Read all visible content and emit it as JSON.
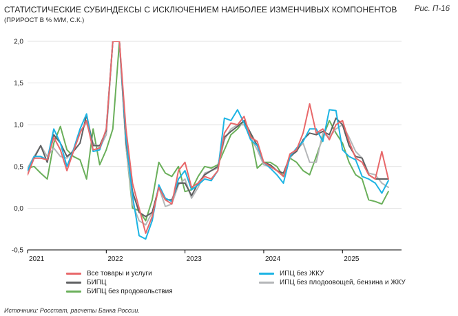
{
  "header": {
    "title": "СТАТИСТИЧЕСКИЕ СУБИНДЕКСЫ С ИСКЛЮЧЕНИЕМ НАИБОЛЕЕ ИЗМЕНЧИВЫХ КОМПОНЕНТОВ",
    "subtitle": "(ПРИРОСТ В % М/М, С.К.)",
    "figure_ref": "Рис. П-16"
  },
  "footer": {
    "source": "Источники: Росстат, расчеты Банка России."
  },
  "colors": {
    "all_goods": "#e8686a",
    "bipc": "#5f6062",
    "bipc_no_food": "#6aaf5a",
    "cpi_no_housing": "#1cb4e4",
    "cpi_no_veg": "#b4b6b8",
    "grid": "#d9d9d9",
    "axis": "#000000"
  },
  "chart_data": {
    "type": "line",
    "ylim": [
      -0.5,
      2.0
    ],
    "yticks": [
      "-0,5",
      "0,0",
      "0,5",
      "1,0",
      "1,5",
      "2,0"
    ],
    "ytick_values": [
      -0.5,
      0.0,
      0.5,
      1.0,
      1.5,
      2.0
    ],
    "xlim": [
      2021.0,
      2025.75
    ],
    "xticks": [
      "2021",
      "2022",
      "2023",
      "2024",
      "2025"
    ],
    "xtick_values": [
      2021,
      2022,
      2023,
      2024,
      2025
    ],
    "grid": "horizontal",
    "legend_position": "bottom",
    "series": [
      {
        "key": "all_goods",
        "name": "Все товары и услуги",
        "x": [
          2021.0,
          2021.083,
          2021.167,
          2021.25,
          2021.333,
          2021.417,
          2021.5,
          2021.583,
          2021.667,
          2021.75,
          2021.833,
          2021.917,
          2022.0,
          2022.083,
          2022.167,
          2022.25,
          2022.333,
          2022.417,
          2022.5,
          2022.583,
          2022.667,
          2022.75,
          2022.833,
          2022.917,
          2023.0,
          2023.083,
          2023.167,
          2023.25,
          2023.333,
          2023.417,
          2023.5,
          2023.583,
          2023.667,
          2023.75,
          2023.833,
          2023.917,
          2024.0,
          2024.083,
          2024.167,
          2024.25,
          2024.333,
          2024.417,
          2024.5,
          2024.583,
          2024.667,
          2024.75,
          2024.833,
          2024.917,
          2025.0,
          2025.083,
          2025.167,
          2025.25,
          2025.333,
          2025.417,
          2025.5,
          2025.583
        ],
        "y": [
          0.4,
          0.6,
          0.6,
          0.58,
          0.85,
          0.7,
          0.45,
          0.68,
          0.9,
          1.05,
          0.7,
          0.72,
          0.95,
          2.0,
          2.0,
          0.95,
          0.3,
          0.0,
          -0.3,
          -0.1,
          0.25,
          0.1,
          0.05,
          0.45,
          0.55,
          0.25,
          0.3,
          0.38,
          0.35,
          0.45,
          0.9,
          1.02,
          1.0,
          1.1,
          0.85,
          0.8,
          0.55,
          0.5,
          0.45,
          0.38,
          0.65,
          0.7,
          0.9,
          1.25,
          0.9,
          0.95,
          0.82,
          1.0,
          1.05,
          0.8,
          0.6,
          0.55,
          0.4,
          0.35,
          0.68,
          0.35
        ]
      },
      {
        "key": "bipc",
        "name": "БИПЦ",
        "x": [
          2021.0,
          2021.083,
          2021.167,
          2021.25,
          2021.333,
          2021.417,
          2021.5,
          2021.583,
          2021.667,
          2021.75,
          2021.833,
          2021.917,
          2022.0,
          2022.083,
          2022.167,
          2022.25,
          2022.333,
          2022.417,
          2022.5,
          2022.583,
          2022.667,
          2022.75,
          2022.833,
          2022.917,
          2023.0,
          2023.083,
          2023.167,
          2023.25,
          2023.333,
          2023.417,
          2023.5,
          2023.583,
          2023.667,
          2023.75,
          2023.833,
          2023.917,
          2024.0,
          2024.083,
          2024.167,
          2024.25,
          2024.333,
          2024.417,
          2024.5,
          2024.583,
          2024.667,
          2024.75,
          2024.833,
          2024.917,
          2025.0,
          2025.083,
          2025.167,
          2025.25,
          2025.333,
          2025.417,
          2025.5,
          2025.583
        ],
        "y": [
          0.45,
          0.6,
          0.75,
          0.55,
          0.88,
          0.78,
          0.62,
          0.68,
          0.78,
          1.12,
          0.75,
          0.75,
          0.93,
          2.0,
          2.0,
          0.8,
          0.2,
          -0.05,
          -0.1,
          -0.05,
          0.25,
          0.1,
          0.1,
          0.3,
          0.3,
          0.15,
          0.3,
          0.4,
          0.45,
          0.5,
          0.85,
          0.92,
          0.98,
          1.05,
          0.9,
          0.75,
          0.55,
          0.52,
          0.45,
          0.42,
          0.62,
          0.68,
          0.82,
          0.9,
          0.88,
          0.92,
          0.88,
          1.08,
          1.0,
          0.75,
          0.62,
          0.6,
          0.4,
          0.35,
          0.35,
          0.35
        ]
      },
      {
        "key": "bipc_no_food",
        "name": "БИПЦ без продовольствия",
        "x": [
          2021.0,
          2021.083,
          2021.167,
          2021.25,
          2021.333,
          2021.417,
          2021.5,
          2021.583,
          2021.667,
          2021.75,
          2021.833,
          2021.917,
          2022.0,
          2022.083,
          2022.167,
          2022.25,
          2022.333,
          2022.417,
          2022.5,
          2022.583,
          2022.667,
          2022.75,
          2022.833,
          2022.917,
          2023.0,
          2023.083,
          2023.167,
          2023.25,
          2023.333,
          2023.417,
          2023.5,
          2023.583,
          2023.667,
          2023.75,
          2023.833,
          2023.917,
          2024.0,
          2024.083,
          2024.167,
          2024.25,
          2024.333,
          2024.417,
          2024.5,
          2024.583,
          2024.667,
          2024.75,
          2024.833,
          2024.917,
          2025.0,
          2025.083,
          2025.167,
          2025.25,
          2025.333,
          2025.417,
          2025.5,
          2025.583
        ],
        "y": [
          0.48,
          0.5,
          0.42,
          0.35,
          0.78,
          0.98,
          0.7,
          0.62,
          0.58,
          0.35,
          0.95,
          0.52,
          0.7,
          0.95,
          2.0,
          0.75,
          0.0,
          -0.03,
          -0.15,
          0.1,
          0.55,
          0.42,
          0.38,
          0.5,
          0.2,
          0.22,
          0.38,
          0.5,
          0.48,
          0.52,
          0.7,
          0.88,
          0.95,
          1.05,
          0.88,
          0.48,
          0.55,
          0.55,
          0.5,
          0.38,
          0.6,
          0.55,
          0.45,
          0.4,
          0.62,
          0.85,
          1.05,
          0.9,
          0.78,
          0.55,
          0.4,
          0.35,
          0.1,
          0.08,
          0.05,
          0.2
        ]
      },
      {
        "key": "cpi_no_housing",
        "name": "ИПЦ без ЖКУ",
        "x": [
          2021.0,
          2021.083,
          2021.167,
          2021.25,
          2021.333,
          2021.417,
          2021.5,
          2021.583,
          2021.667,
          2021.75,
          2021.833,
          2021.917,
          2022.0,
          2022.083,
          2022.167,
          2022.25,
          2022.333,
          2022.417,
          2022.5,
          2022.583,
          2022.667,
          2022.75,
          2022.833,
          2022.917,
          2023.0,
          2023.083,
          2023.167,
          2023.25,
          2023.333,
          2023.417,
          2023.5,
          2023.583,
          2023.667,
          2023.75,
          2023.833,
          2023.917,
          2024.0,
          2024.083,
          2024.167,
          2024.25,
          2024.333,
          2024.417,
          2024.5,
          2024.583,
          2024.667,
          2024.75,
          2024.833,
          2024.917,
          2025.0,
          2025.083,
          2025.167,
          2025.25,
          2025.333,
          2025.417,
          2025.5,
          2025.583
        ],
        "y": [
          0.45,
          0.62,
          0.62,
          0.58,
          0.95,
          0.78,
          0.5,
          0.7,
          0.95,
          1.13,
          0.68,
          0.7,
          0.95,
          2.0,
          2.0,
          0.85,
          0.15,
          -0.33,
          -0.37,
          -0.15,
          0.28,
          0.12,
          0.08,
          0.35,
          0.45,
          0.22,
          0.28,
          0.35,
          0.33,
          0.45,
          1.08,
          1.05,
          1.18,
          1.02,
          0.82,
          0.75,
          0.55,
          0.48,
          0.4,
          0.3,
          0.62,
          0.72,
          0.8,
          0.95,
          0.95,
          0.8,
          1.18,
          1.17,
          0.7,
          0.62,
          0.58,
          0.38,
          0.35,
          0.3,
          0.18,
          0.33
        ]
      },
      {
        "key": "cpi_no_veg",
        "name": "ИПЦ без плодоовощей, бензина и ЖКУ",
        "x": [
          2021.0,
          2021.083,
          2021.167,
          2021.25,
          2021.333,
          2021.417,
          2021.5,
          2021.583,
          2021.667,
          2021.75,
          2021.833,
          2021.917,
          2022.0,
          2022.083,
          2022.167,
          2022.25,
          2022.333,
          2022.417,
          2022.5,
          2022.583,
          2022.667,
          2022.75,
          2022.833,
          2022.917,
          2023.0,
          2023.083,
          2023.167,
          2023.25,
          2023.333,
          2023.417,
          2023.5,
          2023.583,
          2023.667,
          2023.75,
          2023.833,
          2023.917,
          2024.0,
          2024.083,
          2024.167,
          2024.25,
          2024.333,
          2024.417,
          2024.5,
          2024.583,
          2024.667,
          2024.75,
          2024.833,
          2024.917,
          2025.0,
          2025.083,
          2025.167,
          2025.25,
          2025.333,
          2025.417,
          2025.5,
          2025.583
        ],
        "y": [
          0.48,
          0.62,
          0.75,
          0.62,
          0.72,
          0.62,
          0.6,
          0.7,
          0.92,
          1.02,
          0.78,
          0.72,
          0.88,
          2.0,
          2.0,
          0.75,
          0.05,
          -0.15,
          -0.2,
          -0.05,
          0.25,
          0.02,
          0.05,
          0.28,
          0.35,
          0.12,
          0.25,
          0.42,
          0.45,
          0.48,
          0.82,
          0.95,
          1.0,
          1.0,
          0.85,
          0.7,
          0.52,
          0.5,
          0.45,
          0.42,
          0.6,
          0.7,
          0.78,
          0.55,
          0.55,
          0.9,
          0.85,
          0.95,
          1.0,
          0.85,
          0.68,
          0.6,
          0.42,
          0.4,
          0.3,
          0.25
        ]
      }
    ]
  }
}
